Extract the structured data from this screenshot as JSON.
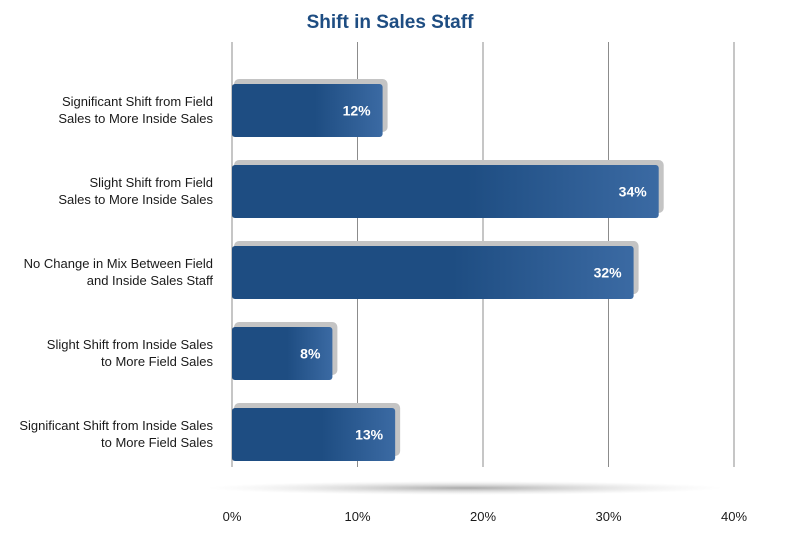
{
  "chart_data": {
    "type": "bar",
    "orientation": "horizontal",
    "title": "Shift in Sales Staff",
    "categories": [
      [
        "Significant Shift from Field",
        "Sales to More Inside Sales"
      ],
      [
        "Slight Shift from Field",
        "Sales to More Inside Sales"
      ],
      [
        "No Change in Mix Between Field",
        "and Inside Sales Staff"
      ],
      [
        "Slight Shift from Inside Sales",
        "to More Field Sales"
      ],
      [
        "Significant Shift from Inside Sales",
        "to More Field Sales"
      ]
    ],
    "values": [
      12,
      34,
      32,
      8,
      13
    ],
    "value_labels": [
      "12%",
      "34%",
      "32%",
      "8%",
      "13%"
    ],
    "xlim": [
      0,
      40
    ],
    "xticks": [
      0,
      10,
      20,
      30,
      40
    ],
    "xtick_labels": [
      "0%",
      "10%",
      "20%",
      "30%",
      "40%"
    ],
    "grid": true,
    "bar_color": "#1e4d82",
    "bar_color_light": "#3b6aa3",
    "title_color": "#1e4d82"
  }
}
